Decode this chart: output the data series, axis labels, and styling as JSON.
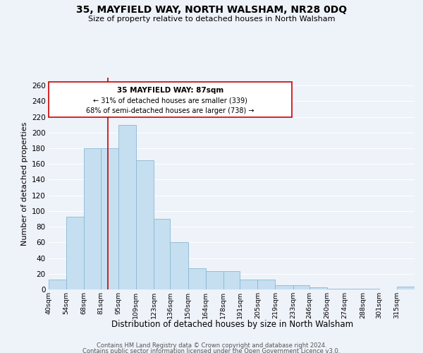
{
  "title": "35, MAYFIELD WAY, NORTH WALSHAM, NR28 0DQ",
  "subtitle": "Size of property relative to detached houses in North Walsham",
  "xlabel": "Distribution of detached houses by size in North Walsham",
  "ylabel": "Number of detached properties",
  "bar_color": "#c5dff0",
  "bar_edge_color": "#8ab8d4",
  "bin_labels": [
    "40sqm",
    "54sqm",
    "68sqm",
    "81sqm",
    "95sqm",
    "109sqm",
    "123sqm",
    "136sqm",
    "150sqm",
    "164sqm",
    "178sqm",
    "191sqm",
    "205sqm",
    "219sqm",
    "233sqm",
    "246sqm",
    "260sqm",
    "274sqm",
    "288sqm",
    "301sqm",
    "315sqm"
  ],
  "bar_values": [
    13,
    93,
    180,
    180,
    210,
    165,
    90,
    60,
    27,
    23,
    23,
    13,
    13,
    5,
    5,
    3,
    1,
    1,
    1,
    0,
    4
  ],
  "bin_starts": [
    40,
    54,
    68,
    81,
    95,
    109,
    123,
    136,
    150,
    164,
    178,
    191,
    205,
    219,
    233,
    246,
    260,
    274,
    288,
    301,
    315
  ],
  "marker_value": 87,
  "marker_color": "#cc0000",
  "ylim": [
    0,
    270
  ],
  "yticks": [
    0,
    20,
    40,
    60,
    80,
    100,
    120,
    140,
    160,
    180,
    200,
    220,
    240,
    260
  ],
  "annotation_title": "35 MAYFIELD WAY: 87sqm",
  "annotation_line1": "← 31% of detached houses are smaller (339)",
  "annotation_line2": "68% of semi-detached houses are larger (738) →",
  "footer_line1": "Contains HM Land Registry data © Crown copyright and database right 2024.",
  "footer_line2": "Contains public sector information licensed under the Open Government Licence v3.0.",
  "background_color": "#eef2f9",
  "plot_bg_color": "#eef2f9",
  "grid_color": "#ffffff"
}
